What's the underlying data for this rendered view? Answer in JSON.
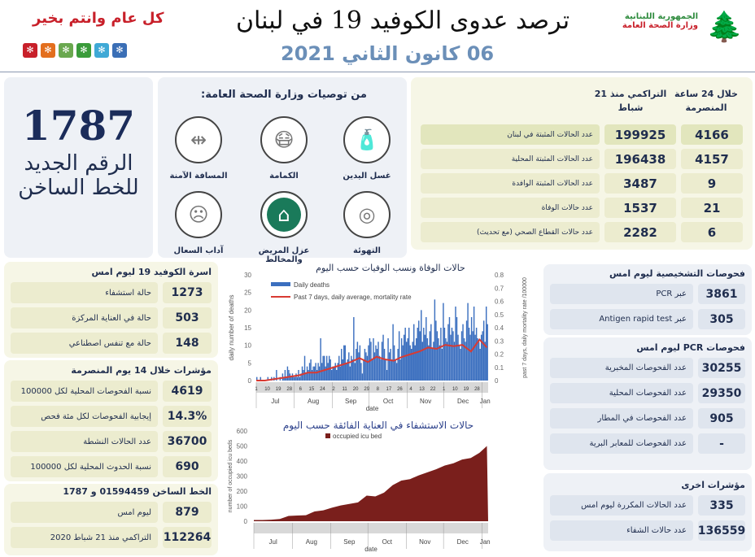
{
  "header": {
    "title": "ترصد عدوى الكوفيد 19 في لبنان",
    "date": "06 كانون الثاني 2021",
    "greeting": "كل عام وانتم بخير",
    "logo_line1": "الجمهورية اللبنانية",
    "logo_line2": "وزارة الصحة العامة",
    "tile_colors": [
      "#c8202a",
      "#e36f1e",
      "#6aa84f",
      "#3a9b3a",
      "#3fa9d6",
      "#3b6fb6"
    ]
  },
  "hotline": {
    "number": "1787",
    "line1": "الرقم الجديد",
    "line2": "للخط الساخن"
  },
  "recommendations": {
    "title": "من توصيات وزارة الصحة العامة:",
    "items": [
      {
        "label": "غسل اليدين",
        "icon": "hand-sanitizer-icon"
      },
      {
        "label": "الكمامة",
        "icon": "face-mask-icon"
      },
      {
        "label": "المسافة الآمنة",
        "icon": "social-distance-icon"
      },
      {
        "label": "التهوئة",
        "icon": "ventilation-icon"
      },
      {
        "label": "عزل المريض والمخالط",
        "icon": "home-isolation-icon"
      },
      {
        "label": "آداب السعال",
        "icon": "cough-etiquette-icon"
      }
    ]
  },
  "cases_table": {
    "col_24h": "خلال 24 ساعة المنصرمة",
    "col_cumulative": "التراكمي منذ 21 شباط",
    "rows": [
      {
        "label": "عدد الحالات المثبتة في لبنان",
        "cumulative": "199925",
        "day": "4166"
      },
      {
        "label": "عدد الحالات المثبتة المحلية",
        "cumulative": "196438",
        "day": "4157"
      },
      {
        "label": "عدد الحالات المثبتة الوافدة",
        "cumulative": "3487",
        "day": "9"
      },
      {
        "label": "عدد حالات الوفاة",
        "cumulative": "1537",
        "day": "21"
      },
      {
        "label": "عدد حالات القطاع الصحي (مع تحديث)",
        "cumulative": "2282",
        "day": "6"
      }
    ]
  },
  "beds": {
    "title": "اسرة الكوفيد 19 ليوم امس",
    "rows": [
      {
        "label": "حالة استشفاء",
        "value": "1273"
      },
      {
        "label": "حالة في العناية المركزة",
        "value": "503"
      },
      {
        "label": "حالة مع تنفس اصطناعي",
        "value": "148"
      }
    ]
  },
  "indicators14": {
    "title": "مؤشرات خلال 14 يوم المنصرمة",
    "rows": [
      {
        "label": "نسبة الفحوصات المحلية لكل 100000",
        "value": "4619"
      },
      {
        "label": "إيجابية الفحوصات لكل مئة فحص",
        "value": "14.3%"
      },
      {
        "label": "عدد الحالات النشطة",
        "value": "36700"
      },
      {
        "label": "نسبة الحدوث المحلية لكل 100000",
        "value": "690"
      }
    ]
  },
  "hotline_calls": {
    "title": "الخط الساخن 01594459 و 1787",
    "rows": [
      {
        "label": "ليوم امس",
        "value": "879"
      },
      {
        "label": "التراكمي منذ 21 شباط 2020",
        "value": "112264"
      }
    ]
  },
  "diagnostic": {
    "title": "فحوصات التشخيصية ليوم امس",
    "rows": [
      {
        "label": "عبر PCR",
        "value": "3861"
      },
      {
        "label": "عبر Antigen rapid test",
        "value": "305"
      }
    ]
  },
  "pcr": {
    "title": "فحوصات PCR ليوم امس",
    "rows": [
      {
        "label": "عدد الفحوصات المخبرية",
        "value": "30255"
      },
      {
        "label": "عدد الفحوصات المحلية",
        "value": "29350"
      },
      {
        "label": "عدد الفحوصات في المطار",
        "value": "905"
      },
      {
        "label": "عدد الفحوصات للمعابر البرية",
        "value": "-"
      }
    ]
  },
  "other": {
    "title": "مؤشرات اخرى",
    "rows": [
      {
        "label": "عدد الحالات المكررة ليوم امس",
        "value": "335"
      },
      {
        "label": "عدد حالات الشفاء",
        "value": "136559"
      }
    ]
  },
  "chart_data": [
    {
      "type": "bar",
      "title": "حالات الوفاة ونسب الوفيات حسب اليوم",
      "xlabel": "date",
      "ylabel": "daily number of deaths",
      "y2label": "past 7 days, daily mortality rate /100000",
      "ylim": [
        0,
        30
      ],
      "y2lim": [
        0,
        0.8
      ],
      "yticks": [
        "0",
        "5",
        "10",
        "15",
        "20",
        "25",
        "30"
      ],
      "y2ticks": [
        "0",
        "0.1",
        "0.2",
        "0.3",
        "0.4",
        "0.5",
        "0.6",
        "0.7",
        "0.8"
      ],
      "months": [
        "Jul",
        "Aug",
        "Sep",
        "Oct",
        "Nov",
        "Dec",
        "Jan"
      ],
      "day_ticks": {
        "Jul": [
          1,
          10,
          19,
          28
        ],
        "Aug": [
          6,
          15,
          24
        ],
        "Sep": [
          2,
          11,
          20,
          29
        ],
        "Oct": [
          8,
          17,
          26
        ],
        "Nov": [
          4,
          13,
          22
        ],
        "Dec": [
          1,
          10,
          19,
          28
        ],
        "Jan": []
      },
      "legend": [
        "Daily deaths",
        "Past 7 days, daily average, mortality rate"
      ],
      "legend_position": "top-left",
      "colors": {
        "bars": "#3b6fbf",
        "line": "#d83a32"
      },
      "daily_deaths": {
        "Jul": [
          1,
          0,
          0,
          1,
          0,
          0,
          0,
          0,
          0,
          1,
          0,
          0,
          1,
          0,
          1,
          0,
          3,
          0,
          0,
          1,
          0,
          2,
          1,
          3,
          1,
          4,
          3,
          2,
          1,
          2,
          1
        ],
        "Aug": [
          1,
          2,
          1,
          3,
          1,
          2,
          4,
          3,
          7,
          2,
          4,
          3,
          5,
          6,
          3,
          4,
          4,
          5,
          3,
          5,
          4,
          12,
          5,
          7,
          7,
          4,
          7,
          5,
          7,
          6,
          3
        ],
        "Sep": [
          4,
          4,
          5,
          3,
          5,
          7,
          4,
          9,
          6,
          10,
          10,
          5,
          6,
          8,
          4,
          7,
          6,
          18,
          5,
          9,
          11,
          8,
          10,
          5,
          2,
          6,
          9,
          8,
          7,
          10
        ],
        "Oct": [
          12,
          11,
          6,
          12,
          8,
          10,
          9,
          11,
          7,
          6,
          11,
          13,
          9,
          6,
          3,
          12,
          8,
          9,
          6,
          16,
          10,
          6,
          5,
          9,
          14,
          6,
          12,
          10,
          13,
          15,
          11
        ],
        "Nov": [
          12,
          15,
          10,
          9,
          11,
          16,
          10,
          12,
          15,
          17,
          14,
          20,
          11,
          15,
          13,
          18,
          12,
          10,
          14,
          16,
          9,
          11,
          23,
          17,
          14,
          12,
          10,
          15,
          9,
          22
        ],
        "Dec": [
          15,
          12,
          11,
          16,
          18,
          13,
          15,
          14,
          11,
          21,
          18,
          13,
          10,
          9,
          14,
          16,
          12,
          11,
          17,
          22,
          15,
          13,
          18,
          14,
          21,
          13,
          15,
          12,
          11,
          9,
          13
        ],
        "Jan": [
          14,
          17,
          11,
          21,
          16
        ]
      },
      "mortality_rate": [
        [
          "Jul",
          1,
          0
        ],
        [
          "Jul",
          8,
          0
        ],
        [
          "Jul",
          15,
          0.01
        ],
        [
          "Jul",
          22,
          0.02
        ],
        [
          "Jul",
          29,
          0.03
        ],
        [
          "Aug",
          5,
          0.04
        ],
        [
          "Aug",
          12,
          0.06
        ],
        [
          "Aug",
          19,
          0.06
        ],
        [
          "Aug",
          26,
          0.08
        ],
        [
          "Sep",
          2,
          0.1
        ],
        [
          "Sep",
          9,
          0.12
        ],
        [
          "Sep",
          16,
          0.14
        ],
        [
          "Sep",
          23,
          0.17
        ],
        [
          "Sep",
          30,
          0.14
        ],
        [
          "Oct",
          7,
          0.18
        ],
        [
          "Oct",
          14,
          0.16
        ],
        [
          "Oct",
          21,
          0.15
        ],
        [
          "Oct",
          28,
          0.18
        ],
        [
          "Nov",
          4,
          0.2
        ],
        [
          "Nov",
          11,
          0.22
        ],
        [
          "Nov",
          18,
          0.25
        ],
        [
          "Nov",
          25,
          0.24
        ],
        [
          "Dec",
          2,
          0.27
        ],
        [
          "Dec",
          9,
          0.26
        ],
        [
          "Dec",
          16,
          0.27
        ],
        [
          "Dec",
          23,
          0.22
        ],
        [
          "Dec",
          30,
          0.31
        ],
        [
          "Jan",
          5,
          0.25
        ]
      ]
    },
    {
      "type": "area",
      "title": "حالات الاستشفاء في العناية الفائقة حسب اليوم",
      "xlabel": "date",
      "ylabel": "number of occupied icu beds",
      "ylim": [
        0,
        600
      ],
      "yticks": [
        "0",
        "100",
        "200",
        "300",
        "400",
        "500",
        "600"
      ],
      "months": [
        "Jul",
        "Aug",
        "Sep",
        "Oct",
        "Nov",
        "Dec",
        "Jan"
      ],
      "legend": [
        "occupied icu bed"
      ],
      "legend_position": "top",
      "colors": {
        "area": "#7a1f1c"
      },
      "occupied_icu_beds": [
        [
          "Jul",
          1,
          8
        ],
        [
          "Jul",
          8,
          8
        ],
        [
          "Jul",
          15,
          10
        ],
        [
          "Jul",
          22,
          15
        ],
        [
          "Jul",
          29,
          35
        ],
        [
          "Aug",
          5,
          38
        ],
        [
          "Aug",
          12,
          40
        ],
        [
          "Aug",
          19,
          65
        ],
        [
          "Aug",
          26,
          72
        ],
        [
          "Sep",
          2,
          90
        ],
        [
          "Sep",
          9,
          105
        ],
        [
          "Sep",
          16,
          115
        ],
        [
          "Sep",
          23,
          125
        ],
        [
          "Sep",
          30,
          170
        ],
        [
          "Oct",
          7,
          165
        ],
        [
          "Oct",
          14,
          190
        ],
        [
          "Oct",
          21,
          240
        ],
        [
          "Oct",
          28,
          270
        ],
        [
          "Nov",
          4,
          280
        ],
        [
          "Nov",
          11,
          305
        ],
        [
          "Nov",
          18,
          325
        ],
        [
          "Nov",
          25,
          345
        ],
        [
          "Dec",
          2,
          370
        ],
        [
          "Dec",
          9,
          385
        ],
        [
          "Dec",
          16,
          410
        ],
        [
          "Dec",
          23,
          420
        ],
        [
          "Dec",
          30,
          455
        ],
        [
          "Jan",
          5,
          500
        ]
      ]
    }
  ]
}
